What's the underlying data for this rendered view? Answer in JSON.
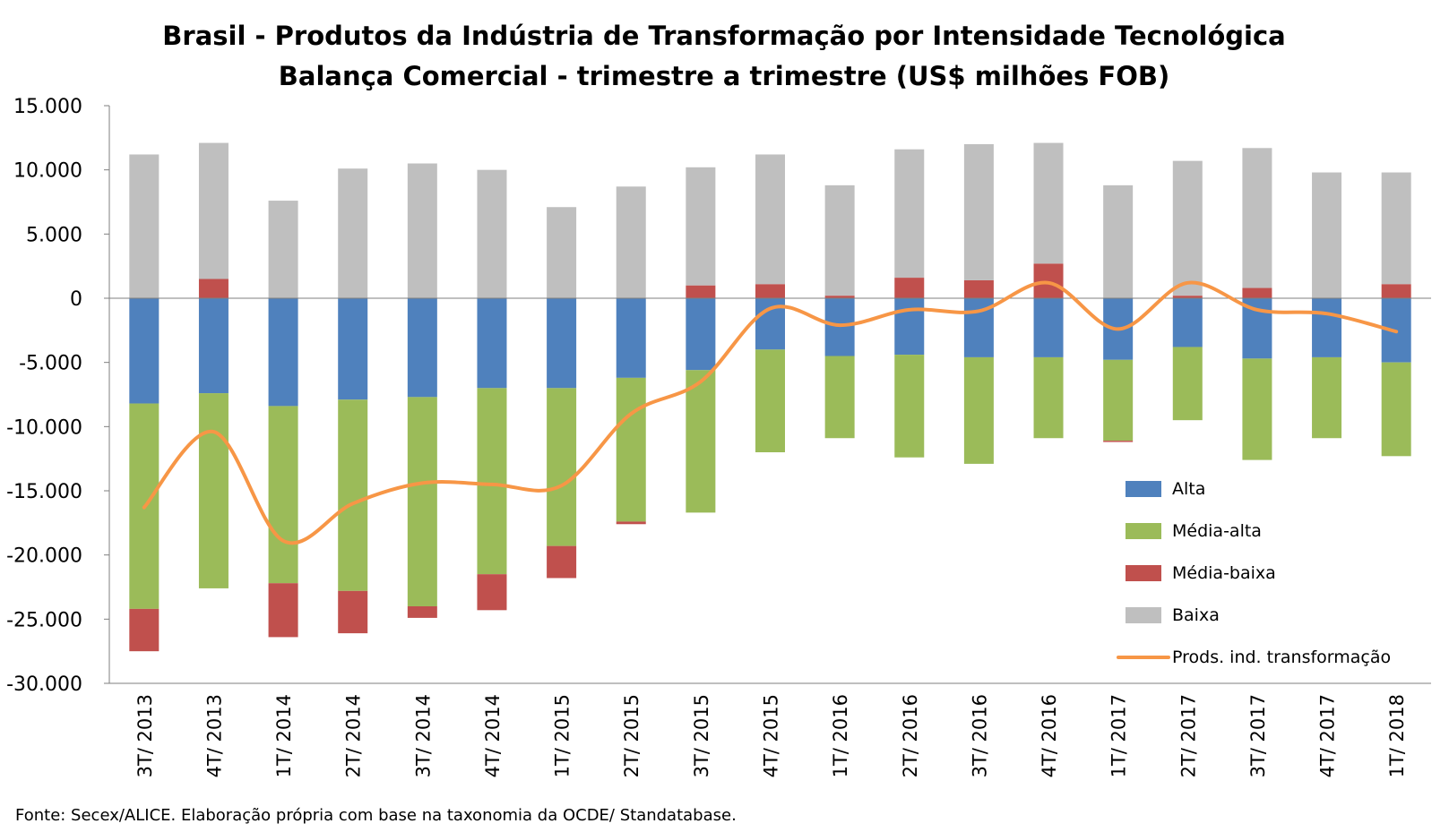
{
  "chart_data": {
    "type": "bar",
    "stacked": true,
    "title": "Brasil - Produtos da Indústria de Transformação por Intensidade Tecnológica",
    "subtitle": "Balança Comercial - trimestre a trimestre (US$ milhões FOB)",
    "categories": [
      "3T/ 2013",
      "4T/ 2013",
      "1T/ 2014",
      "2T/ 2014",
      "3T/ 2014",
      "4T/ 2014",
      "1T/ 2015",
      "2T/ 2015",
      "3T/ 2015",
      "4T/ 2015",
      "1T/ 2016",
      "2T/ 2016",
      "3T/ 2016",
      "4T/ 2016",
      "1T/ 2017",
      "2T/ 2017",
      "3T/ 2017",
      "4T/ 2017",
      "1T/ 2018"
    ],
    "ylim": [
      -30000,
      15000
    ],
    "yticks": [
      15000,
      10000,
      5000,
      0,
      -5000,
      -10000,
      -15000,
      -20000,
      -25000,
      -30000
    ],
    "ytick_labels": [
      "15.000",
      "10.000",
      "5.000",
      "0",
      "-5.000",
      "-10.000",
      "-15.000",
      "-20.000",
      "-25.000",
      "-30.000"
    ],
    "grid": false,
    "legend": "right",
    "series": [
      {
        "name": "Alta",
        "kind": "bar",
        "color": "#4F81BD",
        "values": [
          -8200,
          -7400,
          -8400,
          -7900,
          -7700,
          -7000,
          -7000,
          -6200,
          -5600,
          -4000,
          -4500,
          -4400,
          -4600,
          -4600,
          -4800,
          -3800,
          -4700,
          -4600,
          -5000
        ]
      },
      {
        "name": "Média-alta",
        "kind": "bar",
        "color": "#9BBB59",
        "values": [
          -16000,
          -15200,
          -13800,
          -14900,
          -16300,
          -14500,
          -12300,
          -11200,
          -11100,
          -8000,
          -6400,
          -8000,
          -8300,
          -6300,
          -6300,
          -5700,
          -7900,
          -6300,
          -7300
        ]
      },
      {
        "name": "Média-baixa",
        "kind": "bar",
        "color": "#C0504D",
        "values": [
          -3300,
          1500,
          -4200,
          -3300,
          -900,
          -2800,
          -2500,
          -200,
          1000,
          1100,
          200,
          1600,
          1400,
          2700,
          -100,
          200,
          800,
          0,
          1100
        ]
      },
      {
        "name": "Baixa",
        "kind": "bar",
        "color": "#BFBFBF",
        "values": [
          11200,
          10600,
          7600,
          10100,
          10500,
          10000,
          7100,
          8700,
          9200,
          10100,
          8600,
          10000,
          10600,
          9400,
          8800,
          10500,
          10900,
          9800,
          8700
        ]
      },
      {
        "name": "Prods. ind. transformação",
        "kind": "line",
        "color": "#F79646",
        "values": [
          -16300,
          -10400,
          -18900,
          -16000,
          -14400,
          -14500,
          -14600,
          -9000,
          -6500,
          -800,
          -2100,
          -900,
          -1000,
          1200,
          -2400,
          1200,
          -900,
          -1200,
          -2600
        ]
      }
    ]
  },
  "source_text": "Fonte: Secex/ALICE. Elaboração própria com base na taxonomia da OCDE/ Standatabase."
}
